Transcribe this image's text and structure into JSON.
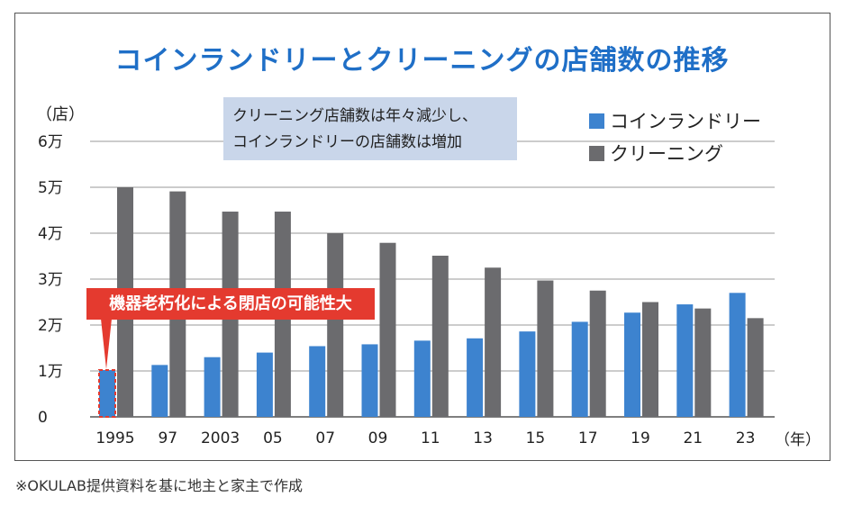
{
  "chart_data": {
    "type": "bar",
    "title": "コインランドリーとクリーニングの店舗数の推移",
    "ylabel": "（店）",
    "xlabel": "（年）",
    "ylim": [
      0,
      60000
    ],
    "yticks": [
      0,
      10000,
      20000,
      30000,
      40000,
      50000,
      60000
    ],
    "ytick_labels": [
      "0",
      "1万",
      "2万",
      "3万",
      "4万",
      "5万",
      "6万"
    ],
    "categories": [
      "1995",
      "97",
      "2003",
      "05",
      "07",
      "09",
      "11",
      "13",
      "15",
      "17",
      "19",
      "21",
      "23"
    ],
    "series": [
      {
        "name": "コインランドリー",
        "color": "#3d83cf",
        "values": [
          10200,
          11300,
          13000,
          14000,
          15400,
          15800,
          16600,
          17100,
          18600,
          20700,
          22700,
          24500,
          27000
        ]
      },
      {
        "name": "クリーニング",
        "color": "#6b6b6e",
        "values": [
          50000,
          49100,
          44700,
          44700,
          40000,
          37900,
          35100,
          32500,
          29700,
          27500,
          25000,
          23600,
          21500
        ]
      }
    ],
    "annotations": [
      "クリーニング店舗数は年々減少し、",
      "コインランドリーの店舗数は増加"
    ],
    "callout": "機器老朽化による閉店の可能性大",
    "legend_position": "top-right"
  },
  "source": "※OKULAB提供資料を基に地主と家主で作成"
}
